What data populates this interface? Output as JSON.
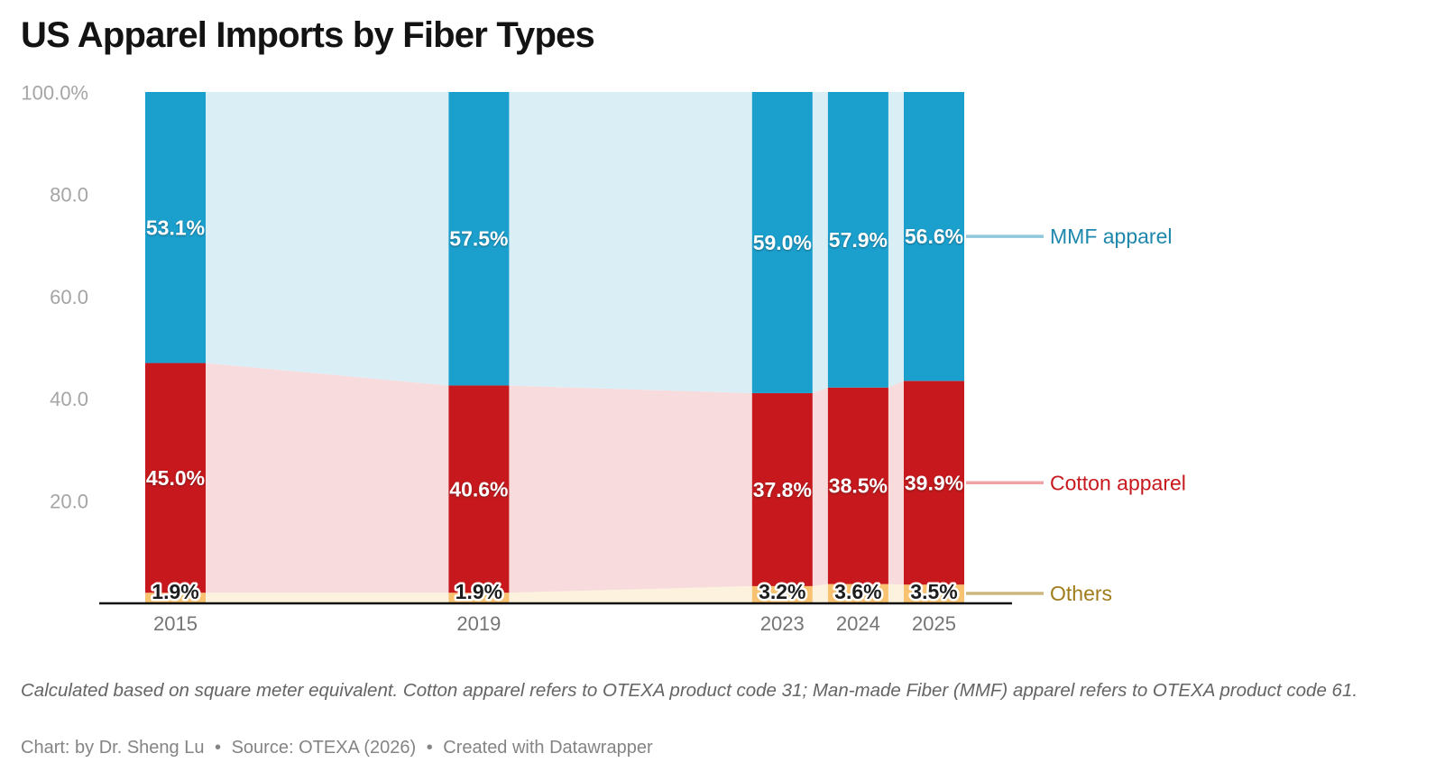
{
  "title": "US Apparel Imports by Fiber Types",
  "footnote": "Calculated based on square meter equivalent. Cotton apparel refers to OTEXA product code 31; Man-made Fiber (MMF) apparel refers to OTEXA product code 61.",
  "byline": {
    "chart_credit": "Chart: by Dr. Sheng Lu",
    "source": "Source: OTEXA (2026)",
    "created_with": "Created with Datawrapper",
    "separator": "•"
  },
  "chart_data": {
    "type": "bar",
    "variant": "percentage-stacked-columns-with-connecting-area-bands",
    "title": "US Apparel Imports by Fiber Types",
    "categories": [
      "2015",
      "2019",
      "2023",
      "2024",
      "2025"
    ],
    "x_values": [
      2015,
      2019,
      2023,
      2024,
      2025
    ],
    "series": [
      {
        "name": "MMF apparel",
        "values": [
          53.1,
          57.5,
          59.0,
          57.9,
          56.6
        ],
        "value_labels": [
          "53.1%",
          "57.5%",
          "59.0%",
          "57.9%",
          "56.6%"
        ],
        "bar_color": "#1ba0ce",
        "area_color": "#daeef6",
        "legend_text_color": "#1d87ac",
        "connector_color": "#8fc7dc",
        "label_style": "inside-white"
      },
      {
        "name": "Cotton apparel",
        "values": [
          45.0,
          40.6,
          37.8,
          38.5,
          39.9
        ],
        "value_labels": [
          "45.0%",
          "40.6%",
          "37.8%",
          "38.5%",
          "39.9%"
        ],
        "bar_color": "#c7191d",
        "area_color": "#f8dcdd",
        "legend_text_color": "#c7191d",
        "connector_color": "#f0a3a4",
        "label_style": "inside-white"
      },
      {
        "name": "Others",
        "values": [
          1.9,
          1.9,
          3.2,
          3.6,
          3.5
        ],
        "value_labels": [
          "1.9%",
          "1.9%",
          "3.2%",
          "3.6%",
          "3.5%"
        ],
        "bar_color": "#f9c271",
        "area_color": "#fdf2dd",
        "legend_text_color": "#a07c1b",
        "connector_color": "#ccb77e",
        "label_style": "bottom-dark"
      }
    ],
    "stack_order_bottom_to_top": [
      "Others",
      "Cotton apparel",
      "MMF apparel"
    ],
    "y_axis": {
      "ticks": [
        100,
        80,
        60,
        40,
        20
      ],
      "tick_labels": [
        "100.0%",
        "80.0",
        "60.0",
        "40.0",
        "20.0"
      ],
      "range": [
        0,
        100
      ],
      "unit": "%",
      "gridlines": false
    },
    "legend": {
      "position": "right",
      "entries": [
        "MMF apparel",
        "Cotton apparel",
        "Others"
      ]
    },
    "axis_color": "#111111"
  }
}
